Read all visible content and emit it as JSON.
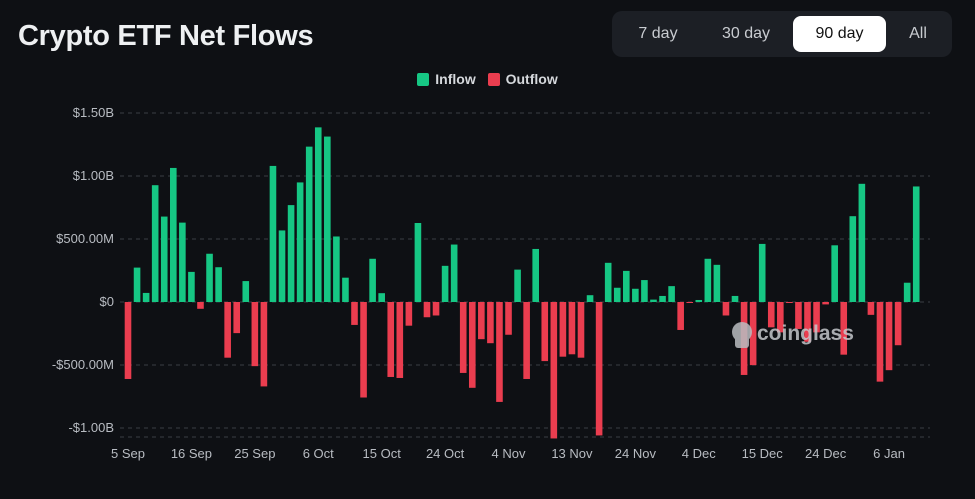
{
  "header": {
    "title": "Crypto ETF Net Flows"
  },
  "range_selector": {
    "options": [
      "7 day",
      "30 day",
      "90 day",
      "All"
    ],
    "selected": "90 day"
  },
  "watermark": "coinglass",
  "colors": {
    "inflow": "#16c784",
    "outflow": "#ea3d4f",
    "background": "#0e1014"
  },
  "chart_data": {
    "type": "bar",
    "title": "Crypto ETF Net Flows",
    "xlabel": "",
    "ylabel": "",
    "unit": "USD millions",
    "ylim": [
      -1100,
      1550
    ],
    "grid": true,
    "legend_placement": "top-center",
    "legend": [
      "Inflow",
      "Outflow"
    ],
    "y_ticks": [
      {
        "value": 1500,
        "label": "$1.50B"
      },
      {
        "value": 1000,
        "label": "$1.00B"
      },
      {
        "value": 500,
        "label": "$500.00M"
      },
      {
        "value": 0,
        "label": "$0"
      },
      {
        "value": -500,
        "label": "-$500.00M"
      },
      {
        "value": -1000,
        "label": "-$1.00B"
      }
    ],
    "x_ticks": [
      {
        "index": 0,
        "label": "5 Sep"
      },
      {
        "index": 7,
        "label": "16 Sep"
      },
      {
        "index": 14,
        "label": "25 Sep"
      },
      {
        "index": 21,
        "label": "6 Oct"
      },
      {
        "index": 28,
        "label": "15 Oct"
      },
      {
        "index": 35,
        "label": "24 Oct"
      },
      {
        "index": 42,
        "label": "4 Nov"
      },
      {
        "index": 49,
        "label": "13 Nov"
      },
      {
        "index": 56,
        "label": "24 Nov"
      },
      {
        "index": 63,
        "label": "4 Dec"
      },
      {
        "index": 70,
        "label": "15 Dec"
      },
      {
        "index": 77,
        "label": "24 Dec"
      },
      {
        "index": 84,
        "label": "6 Jan"
      }
    ],
    "values": [
      -611,
      273,
      72,
      927,
      678,
      1064,
      630,
      239,
      -54,
      383,
      276,
      -442,
      -247,
      166,
      -509,
      -670,
      1080,
      568,
      769,
      949,
      1233,
      1386,
      1313,
      520,
      193,
      -182,
      -758,
      343,
      70,
      -595,
      -603,
      -188,
      627,
      -121,
      -107,
      287,
      456,
      -563,
      -681,
      -295,
      -327,
      -793,
      -260,
      257,
      -611,
      421,
      -469,
      -1083,
      -434,
      -415,
      -442,
      54,
      -1059,
      311,
      113,
      247,
      105,
      174,
      19,
      48,
      126,
      -222,
      -5,
      16,
      343,
      295,
      -107,
      48,
      -579,
      -501,
      461,
      -201,
      -241,
      -5,
      -214,
      -316,
      -241,
      -19,
      450,
      -418,
      681,
      938,
      -102,
      -632,
      -541,
      -343,
      153,
      917
    ]
  }
}
